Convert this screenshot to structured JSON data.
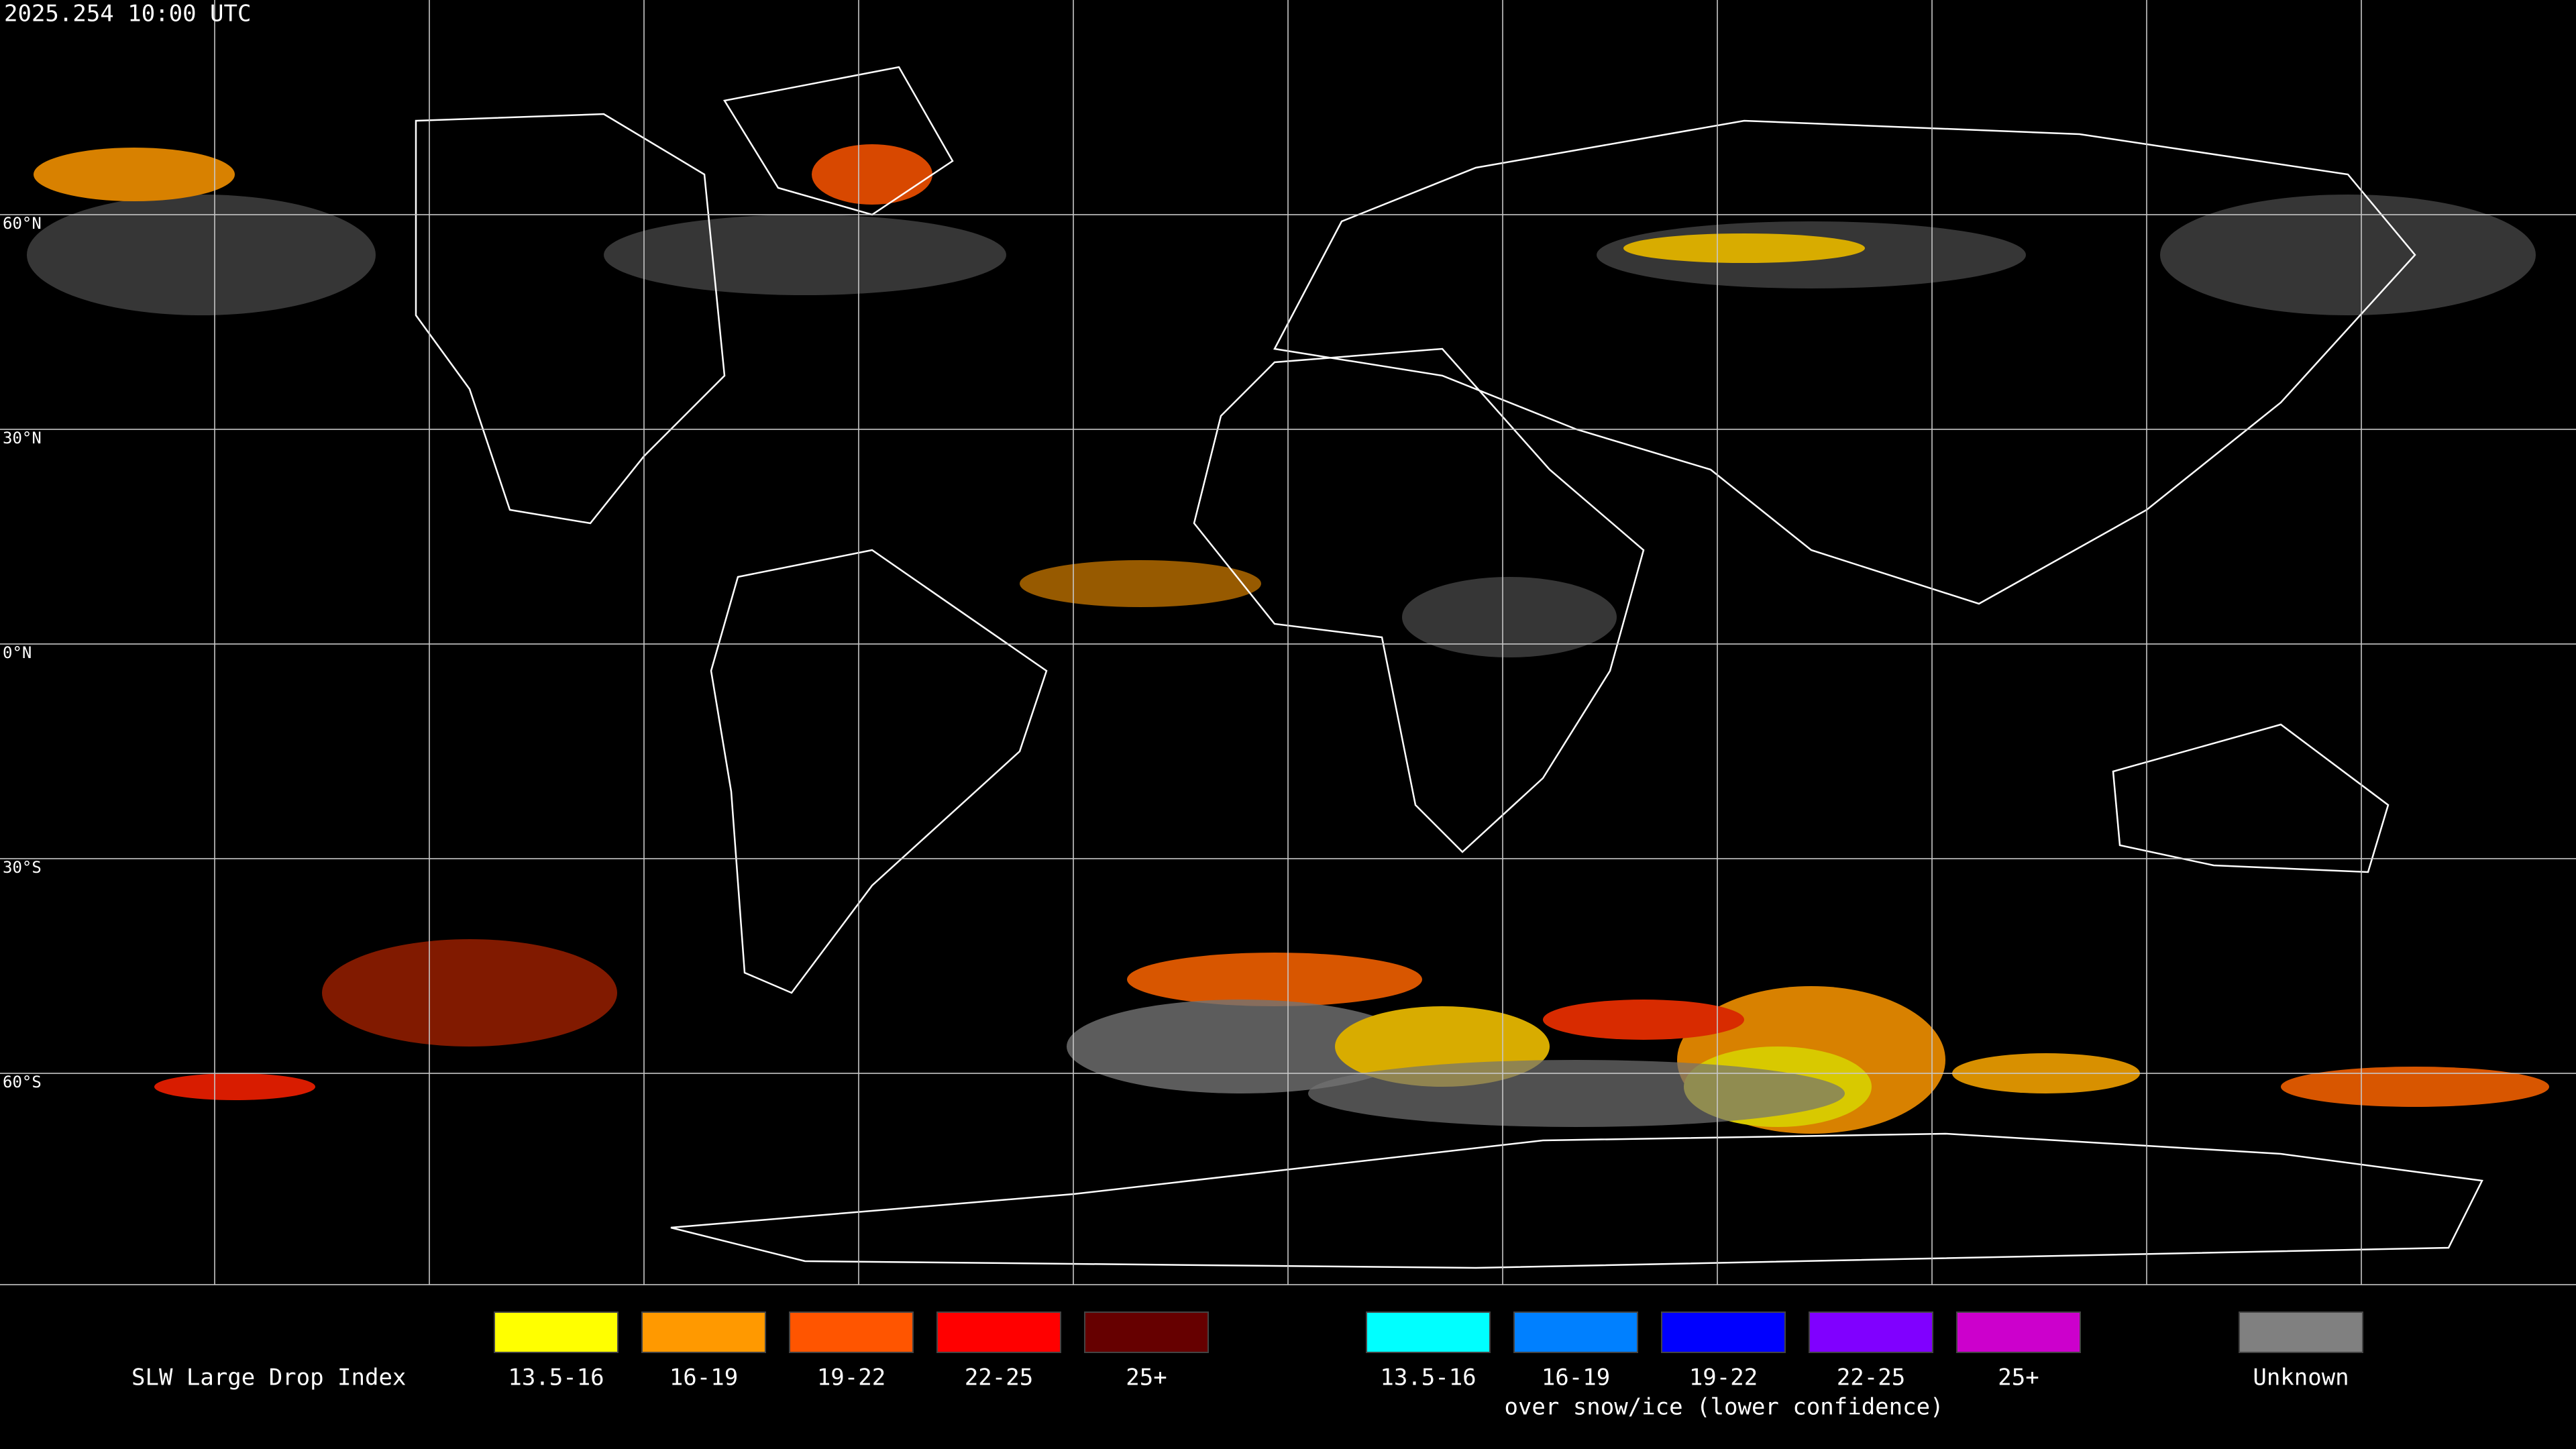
{
  "timestamp": "2025.254 10:00 UTC",
  "latitude_labels": [
    "60°N",
    "30°N",
    "0°N",
    "30°S",
    "60°S"
  ],
  "legend": {
    "title": "SLW Large Drop Index",
    "items": [
      {
        "label": "13.5-16",
        "color": "#ffff00"
      },
      {
        "label": "16-19",
        "color": "#ff9900"
      },
      {
        "label": "19-22",
        "color": "#ff5500"
      },
      {
        "label": "22-25",
        "color": "#ff0000"
      },
      {
        "label": "25+",
        "color": "#660000"
      }
    ],
    "snow_ice_items": [
      {
        "label": "13.5-16",
        "color": "#00ffff"
      },
      {
        "label": "16-19",
        "color": "#0080ff"
      },
      {
        "label": "19-22",
        "color": "#0000ff"
      },
      {
        "label": "22-25",
        "color": "#8000ff"
      },
      {
        "label": "25+",
        "color": "#cc00cc"
      }
    ],
    "snow_ice_note": "over snow/ice (lower confidence)",
    "unknown": {
      "label": "Unknown",
      "color": "#808080"
    }
  }
}
